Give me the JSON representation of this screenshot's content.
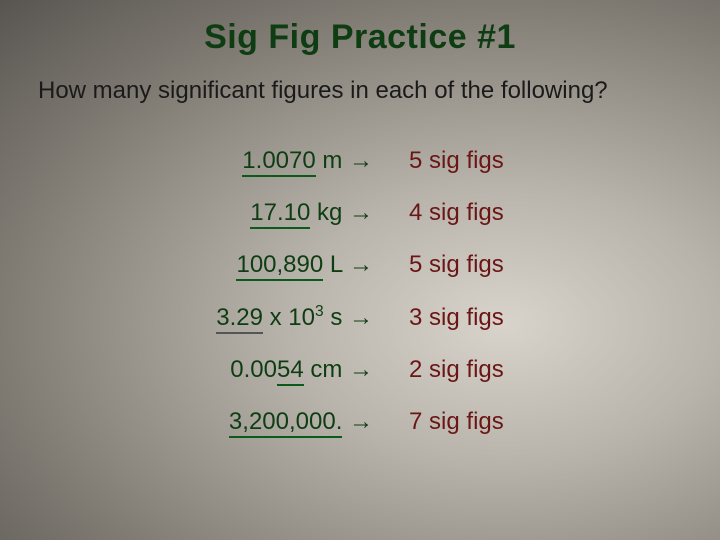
{
  "doc": {
    "title": "Sig Fig Practice #1",
    "subtitle": "How many significant figures in each of the following?",
    "title_color": "#0f3d13",
    "subtitle_color": "#1a1a1a",
    "value_color": "#0f3d13",
    "answer_color": "#6b1515",
    "background_gradient": {
      "center": "#d8d4cc",
      "outer": "#585450"
    },
    "fontsize_title": 34,
    "fontsize_subtitle": 24,
    "fontsize_body": 24
  },
  "rows": [
    {
      "value_html": "<span class=\"u\">1.0070</span> m <span class=\"arrow\">→</span>",
      "answer": "5 sig figs"
    },
    {
      "value_html": "<span class=\"u\">17.10</span> kg <span class=\"arrow\">→</span>",
      "answer": "4 sig figs"
    },
    {
      "value_html": "<span class=\"u\">100,890</span> L <span class=\"arrow\">→</span>",
      "answer": "5 sig figs"
    },
    {
      "value_html": "<span class=\"ug\">3.29</span> x 10<sup>3</sup> s <span class=\"arrow\">→</span>",
      "answer": "3 sig figs"
    },
    {
      "value_html": "0.00<span class=\"u\">54</span> cm <span class=\"arrow\">→</span>",
      "answer": "2 sig figs"
    },
    {
      "value_html": "<span class=\"u\">3,200,000.</span> <span class=\"arrow\">→</span>",
      "answer": "7 sig figs"
    }
  ]
}
